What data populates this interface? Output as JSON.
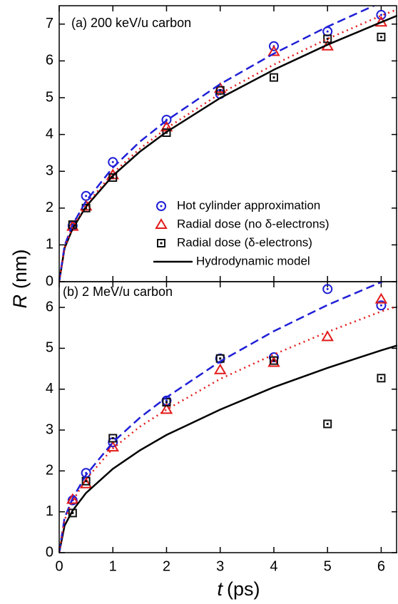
{
  "chart_data": [
    {
      "type": "scatter-line",
      "title": "(a) 200 keV/u carbon",
      "ylabel": "R",
      "ylabel_unit": "(nm)",
      "xlim": [
        0,
        6.3
      ],
      "xticks": [
        0,
        1,
        2,
        3,
        4,
        5,
        6
      ],
      "ylim": [
        0,
        7.5
      ],
      "yticks": [
        0,
        1,
        2,
        3,
        4,
        5,
        6,
        7
      ],
      "legend": "lower right",
      "series": [
        {
          "name": "Hot cylinder approximation",
          "color": "#1f1fd6",
          "marker": "circle",
          "x": [
            0.25,
            0.5,
            1,
            2,
            3,
            4,
            5,
            6
          ],
          "values": [
            1.52,
            2.33,
            3.25,
            4.4,
            5.1,
            6.4,
            6.8,
            7.25
          ]
        },
        {
          "name": "Radial dose (no δ-electrons)",
          "color": "#e31a1a",
          "marker": "triangle",
          "x": [
            0.25,
            0.5,
            1,
            2,
            3,
            4,
            5,
            6
          ],
          "values": [
            1.5,
            2.05,
            2.9,
            4.2,
            5.25,
            6.25,
            6.4,
            7.05
          ]
        },
        {
          "name": "Radial dose (δ-electrons)",
          "color": "#111111",
          "marker": "square",
          "x": [
            0.25,
            0.5,
            1,
            2,
            3,
            4,
            5,
            6
          ],
          "values": [
            1.55,
            2.0,
            2.83,
            4.05,
            5.2,
            5.55,
            6.6,
            6.65
          ]
        },
        {
          "name": "Hydrodynamic model",
          "color": "#000000",
          "marker": "line",
          "dash": "solid",
          "x": [
            0,
            0.1,
            0.25,
            0.5,
            1,
            1.5,
            2,
            3,
            4,
            5,
            6,
            6.3
          ],
          "values": [
            0,
            0.91,
            1.44,
            2.04,
            2.88,
            3.53,
            4.07,
            4.99,
            5.76,
            6.44,
            7.05,
            7.23
          ]
        },
        {
          "color": "#1f1fd6",
          "marker": "line",
          "dash": "dashed",
          "x": [
            0,
            0.1,
            0.25,
            0.5,
            1,
            1.5,
            2,
            3,
            4,
            5,
            6,
            6.3
          ],
          "values": [
            0,
            0.98,
            1.55,
            2.19,
            3.1,
            3.8,
            4.38,
            5.37,
            6.2,
            6.93,
            7.59,
            7.78
          ]
        },
        {
          "color": "#e31a1a",
          "marker": "line",
          "dash": "dotted",
          "x": [
            0,
            0.1,
            0.25,
            0.5,
            1,
            1.5,
            2,
            3,
            4,
            5,
            6,
            6.3
          ],
          "values": [
            0,
            0.93,
            1.48,
            2.09,
            2.95,
            3.61,
            4.17,
            5.11,
            5.9,
            6.6,
            7.23,
            7.4
          ]
        }
      ]
    },
    {
      "type": "scatter-line",
      "title": "(b) 2 MeV/u carbon",
      "xlabel": "t",
      "xlabel_unit": "(ps)",
      "xlim": [
        0,
        6.3
      ],
      "xticks": [
        0,
        1,
        2,
        3,
        4,
        5,
        6
      ],
      "ylim": [
        0,
        6.63
      ],
      "yticks": [
        0,
        1,
        2,
        3,
        4,
        5,
        6
      ],
      "series": [
        {
          "color": "#1f1fd6",
          "marker": "circle",
          "x": [
            0.25,
            0.5,
            1,
            2,
            3,
            4,
            5,
            6
          ],
          "values": [
            1.28,
            1.95,
            2.7,
            3.72,
            4.75,
            4.78,
            6.45,
            6.05
          ]
        },
        {
          "color": "#e31a1a",
          "marker": "triangle",
          "x": [
            0.25,
            0.5,
            1,
            2,
            3,
            4,
            5,
            6
          ],
          "values": [
            1.3,
            1.68,
            2.58,
            3.5,
            4.47,
            4.65,
            5.28,
            6.2
          ]
        },
        {
          "color": "#111111",
          "marker": "square",
          "x": [
            0.25,
            0.5,
            1,
            2,
            3,
            4,
            5,
            6
          ],
          "values": [
            0.97,
            1.75,
            2.8,
            3.68,
            4.75,
            4.7,
            3.15,
            4.27
          ]
        },
        {
          "color": "#000000",
          "marker": "line",
          "dash": "solid",
          "x": [
            0,
            0.1,
            0.25,
            0.5,
            1,
            1.5,
            2,
            3,
            4,
            5,
            6,
            6.3
          ],
          "values": [
            0,
            0.66,
            1.03,
            1.46,
            2.05,
            2.5,
            2.88,
            3.5,
            4.05,
            4.52,
            4.95,
            5.07
          ]
        },
        {
          "color": "#1f1fd6",
          "marker": "line",
          "dash": "dashed",
          "x": [
            0,
            0.1,
            0.25,
            0.5,
            1,
            1.5,
            2,
            3,
            4,
            5,
            6,
            6.3
          ],
          "values": [
            0,
            0.85,
            1.33,
            1.9,
            2.7,
            3.3,
            3.8,
            4.68,
            5.42,
            6.06,
            6.62,
            6.8
          ]
        },
        {
          "color": "#e31a1a",
          "marker": "line",
          "dash": "dotted",
          "x": [
            0,
            0.1,
            0.25,
            0.5,
            1,
            1.5,
            2,
            3,
            4,
            5,
            6,
            6.3
          ],
          "values": [
            0,
            0.8,
            1.26,
            1.8,
            2.55,
            3.08,
            3.5,
            4.25,
            4.85,
            5.4,
            5.9,
            6.03
          ]
        }
      ]
    }
  ]
}
